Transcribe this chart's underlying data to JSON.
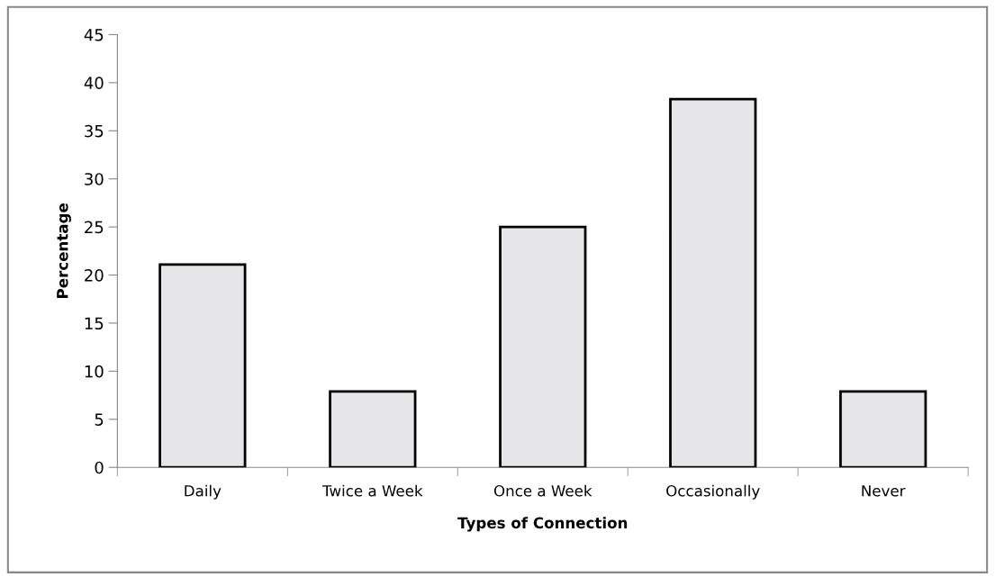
{
  "chart_data": {
    "type": "bar",
    "xlabel": "Types of Connection",
    "ylabel": "Percentage",
    "categories": [
      "Daily",
      "Twice a Week",
      "Once a Week",
      "Occasionally",
      "Never"
    ],
    "values": [
      21.1,
      7.9,
      25.0,
      38.3,
      7.9
    ],
    "color": "#e6e6e9",
    "ylim": [
      0,
      45
    ],
    "yticks": [
      0,
      5,
      10,
      15,
      20,
      25,
      30,
      35,
      40,
      45
    ],
    "grid": false
  }
}
